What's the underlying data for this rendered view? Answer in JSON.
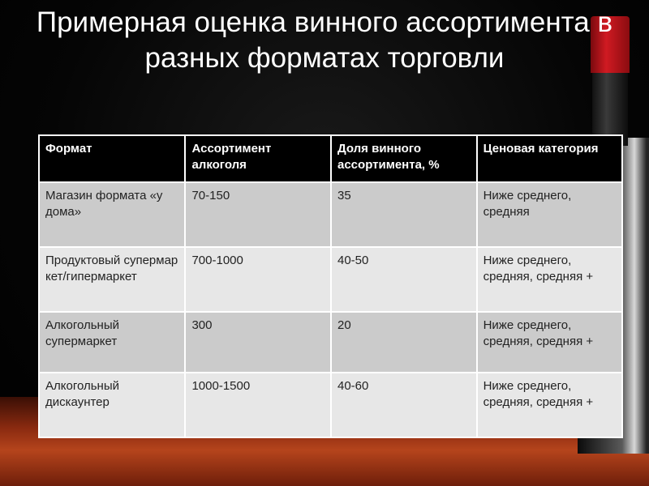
{
  "slide": {
    "title": "Примерная оценка винного ассортимента в разных форматах торговли",
    "table": {
      "headers": [
        "Формат",
        "Ассортимент алкоголя",
        "Доля винного ассортимента, %",
        "Ценовая категория"
      ],
      "rows": [
        [
          "Магазин формата «у дома»",
          "70-150",
          "35",
          "Ниже среднего, средняя"
        ],
        [
          "Продуктовый супермаркет/гипермаркет",
          "700-1000",
          "40-50",
          "Ниже среднего, средняя, средняя +"
        ],
        [
          "Алкогольный супермаркет",
          "300",
          "20",
          "Ниже среднего, средняя, средняя +"
        ],
        [
          "Алкогольный дискаунтер",
          "1000-1500",
          "40-60",
          "Ниже среднего, средняя, средняя +"
        ]
      ]
    },
    "colors": {
      "header_bg": "#000000",
      "row_odd": "#cbcbcb",
      "row_even": "#e7e7e7",
      "bottle_cap": "#d01a22"
    }
  }
}
